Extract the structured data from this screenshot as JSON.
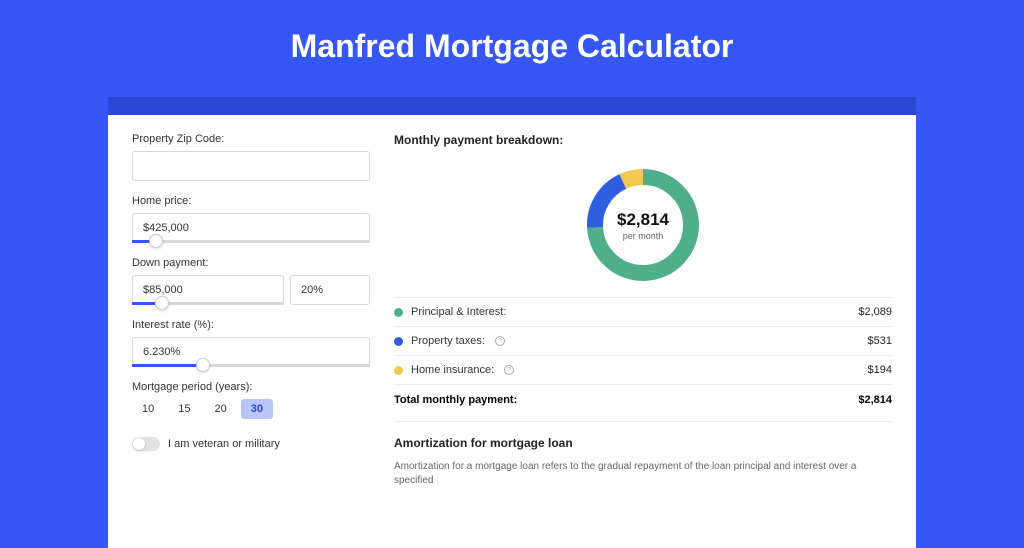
{
  "header": {
    "title": "Manfred Mortgage Calculator"
  },
  "colors": {
    "page_bg": "#3656f5",
    "header_bar": "#2a48d4",
    "card_bg": "#ffffff",
    "input_border": "#d8d8d8",
    "slider_fill": "#3656f5",
    "tab_active_bg": "#b9c6fb",
    "tab_active_fg": "#2a48d4"
  },
  "form": {
    "zip": {
      "label": "Property Zip Code:",
      "value": ""
    },
    "home_price": {
      "label": "Home price:",
      "value": "$425,000",
      "slider_percent": 10
    },
    "down_payment": {
      "label": "Down payment:",
      "amount": "$85,000",
      "percent": "20%",
      "slider_percent": 20
    },
    "interest": {
      "label": "Interest rate (%):",
      "value": "6.230%",
      "slider_percent": 30
    },
    "period": {
      "label": "Mortgage period (years):",
      "options": [
        "10",
        "15",
        "20",
        "30"
      ],
      "active_index": 3
    },
    "veteran": {
      "label": "I am veteran or military",
      "checked": false
    }
  },
  "breakdown": {
    "title": "Monthly payment breakdown:",
    "donut": {
      "amount": "$2,814",
      "sub": "per month",
      "arcs": [
        {
          "color": "#4fae8b",
          "fraction": 0.742
        },
        {
          "color": "#2f5fe0",
          "fraction": 0.189
        },
        {
          "color": "#f3c84b",
          "fraction": 0.069
        }
      ],
      "stroke_width": 16
    },
    "rows": [
      {
        "label": "Principal & Interest:",
        "value": "$2,089",
        "color": "#4fae8b",
        "info": false
      },
      {
        "label": "Property taxes:",
        "value": "$531",
        "color": "#2f5fe0",
        "info": true
      },
      {
        "label": "Home insurance:",
        "value": "$194",
        "color": "#f3c84b",
        "info": true
      }
    ],
    "total": {
      "label": "Total monthly payment:",
      "value": "$2,814"
    }
  },
  "amortization": {
    "title": "Amortization for mortgage loan",
    "text": "Amortization for a mortgage loan refers to the gradual repayment of the loan principal and interest over a specified"
  }
}
